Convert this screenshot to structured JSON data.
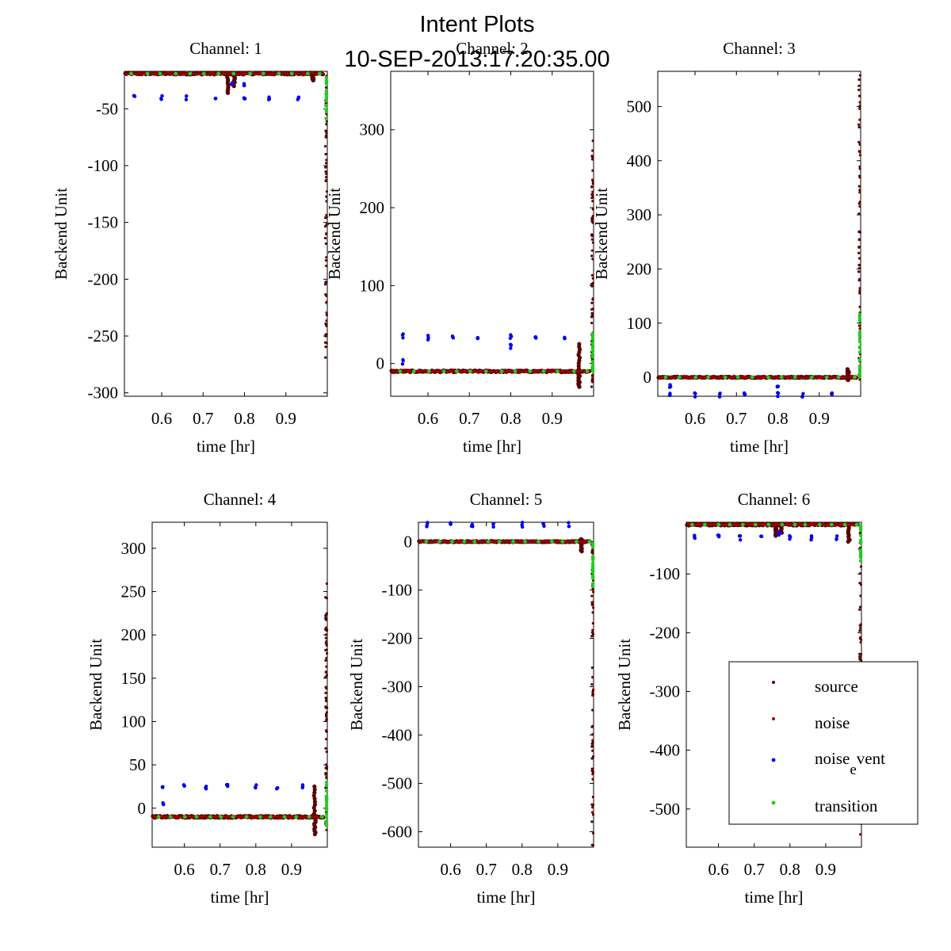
{
  "figure": {
    "title_line1": "Intent Plots",
    "title_line2": "10-SEP-2013:17:20:35.00"
  },
  "chart_data": [
    {
      "type": "scatter",
      "title": "Channel: 1",
      "xlabel": "time [hr]",
      "ylabel": "Backend Unit",
      "xlim": [
        0.51,
        1.0
      ],
      "ylim": [
        -303,
        -17
      ],
      "xticks": [
        0.6,
        0.7,
        0.8,
        0.9
      ],
      "xtick_labels": [
        "0.6",
        "0.7",
        "0.8",
        "0.9"
      ],
      "yticks": [
        -50,
        -100,
        -150,
        -200,
        -250,
        -300
      ],
      "ytick_labels": [
        "-50",
        "-100",
        "-150",
        "-200",
        "-250",
        "-300"
      ],
      "series": [
        {
          "name": "source",
          "color": "#5a0000",
          "base": -19,
          "band": 1.5,
          "spikes": [
            [
              0.76,
              -36
            ],
            [
              0.775,
              -30
            ],
            [
              0.965,
              -25
            ]
          ],
          "end_range": [
            -270,
            -19
          ]
        },
        {
          "name": "noise",
          "color": "#b00000",
          "base": -19,
          "band": 1.2
        },
        {
          "name": "noise_event",
          "color": "#0000ee",
          "offsets": [
            [
              0.534,
              -40
            ],
            [
              0.6,
              -40
            ],
            [
              0.66,
              -40
            ],
            [
              0.73,
              -40
            ],
            [
              0.8,
              -40
            ],
            [
              0.86,
              -40
            ],
            [
              0.93,
              -40
            ],
            [
              0.8,
              -30
            ],
            [
              0.77,
              -27
            ]
          ]
        },
        {
          "name": "transition",
          "color": "#22cc22",
          "base": -19,
          "end_range": [
            -60,
            -19
          ]
        }
      ]
    },
    {
      "type": "scatter",
      "title": "Channel: 2",
      "xlabel": "time [hr]",
      "ylabel": "Backend Unit",
      "xlim": [
        0.51,
        1.0
      ],
      "ylim": [
        -42,
        375
      ],
      "xticks": [
        0.6,
        0.7,
        0.8,
        0.9
      ],
      "xtick_labels": [
        "0.6",
        "0.7",
        "0.8",
        "0.9"
      ],
      "yticks": [
        300,
        200,
        100,
        0
      ],
      "ytick_labels": [
        "300",
        "200",
        "100",
        "0"
      ],
      "series": [
        {
          "name": "source",
          "color": "#5a0000",
          "base": -10,
          "band": 2,
          "spikes": [
            [
              0.965,
              25
            ],
            [
              0.965,
              -30
            ]
          ],
          "end_range": [
            -30,
            300
          ]
        },
        {
          "name": "noise",
          "color": "#b00000",
          "base": -10,
          "band": 1.5
        },
        {
          "name": "noise_event",
          "color": "#0000ee",
          "offsets": [
            [
              0.54,
              35
            ],
            [
              0.6,
              33
            ],
            [
              0.66,
              34
            ],
            [
              0.72,
              33
            ],
            [
              0.8,
              35
            ],
            [
              0.86,
              33
            ],
            [
              0.93,
              34
            ],
            [
              0.8,
              22
            ],
            [
              0.54,
              2
            ]
          ]
        },
        {
          "name": "transition",
          "color": "#22cc22",
          "base": -10,
          "end_range": [
            -10,
            40
          ]
        }
      ]
    },
    {
      "type": "scatter",
      "title": "Channel: 3",
      "xlabel": "time [hr]",
      "ylabel": "Backend Unit",
      "xlim": [
        0.51,
        1.0
      ],
      "ylim": [
        -35,
        565
      ],
      "xticks": [
        0.6,
        0.7,
        0.8,
        0.9
      ],
      "xtick_labels": [
        "0.6",
        "0.7",
        "0.8",
        "0.9"
      ],
      "yticks": [
        500,
        400,
        300,
        200,
        100,
        0
      ],
      "ytick_labels": [
        "500",
        "400",
        "300",
        "200",
        "100",
        "0"
      ],
      "series": [
        {
          "name": "source",
          "color": "#5a0000",
          "base": 0,
          "band": 2,
          "spikes": [
            [
              0.97,
              15
            ],
            [
              0.97,
              -5
            ]
          ],
          "end_range": [
            -5,
            560
          ]
        },
        {
          "name": "noise",
          "color": "#b00000",
          "base": 0,
          "band": 1.5
        },
        {
          "name": "noise_event",
          "color": "#0000ee",
          "offsets": [
            [
              0.54,
              -32
            ],
            [
              0.6,
              -32
            ],
            [
              0.66,
              -32
            ],
            [
              0.72,
              -32
            ],
            [
              0.8,
              -32
            ],
            [
              0.86,
              -32
            ],
            [
              0.93,
              -32
            ],
            [
              0.8,
              -20
            ],
            [
              0.54,
              -15
            ]
          ]
        },
        {
          "name": "transition",
          "color": "#22cc22",
          "base": 0,
          "end_range": [
            0,
            120
          ]
        }
      ]
    },
    {
      "type": "scatter",
      "title": "Channel: 4",
      "xlabel": "time [hr]",
      "ylabel": "Backend Unit",
      "xlim": [
        0.51,
        1.0
      ],
      "ylim": [
        -45,
        330
      ],
      "xticks": [
        0.6,
        0.7,
        0.8,
        0.9
      ],
      "xtick_labels": [
        "0.6",
        "0.7",
        "0.8",
        "0.9"
      ],
      "yticks": [
        300,
        250,
        200,
        150,
        100,
        50,
        0
      ],
      "ytick_labels": [
        "300",
        "250",
        "200",
        "150",
        "100",
        "50",
        "0"
      ],
      "series": [
        {
          "name": "source",
          "color": "#5a0000",
          "base": -10,
          "band": 2,
          "spikes": [
            [
              0.965,
              25
            ],
            [
              0.965,
              -30
            ]
          ],
          "end_range": [
            -30,
            260
          ]
        },
        {
          "name": "noise",
          "color": "#b00000",
          "base": -10,
          "band": 1.5
        },
        {
          "name": "noise_event",
          "color": "#0000ee",
          "offsets": [
            [
              0.54,
              26
            ],
            [
              0.6,
              25
            ],
            [
              0.66,
              25
            ],
            [
              0.72,
              25
            ],
            [
              0.8,
              26
            ],
            [
              0.86,
              25
            ],
            [
              0.93,
              25
            ],
            [
              0.54,
              5
            ]
          ]
        },
        {
          "name": "transition",
          "color": "#22cc22",
          "base": -10,
          "end_range": [
            -20,
            30
          ]
        }
      ]
    },
    {
      "type": "scatter",
      "title": "Channel: 5",
      "xlabel": "time [hr]",
      "ylabel": "Backend Unit",
      "xlim": [
        0.51,
        1.0
      ],
      "ylim": [
        -632,
        40
      ],
      "xticks": [
        0.6,
        0.7,
        0.8,
        0.9
      ],
      "xtick_labels": [
        "0.6",
        "0.7",
        "0.8",
        "0.9"
      ],
      "yticks": [
        0,
        -100,
        -200,
        -300,
        -400,
        -500,
        -600
      ],
      "ytick_labels": [
        "0",
        "-100",
        "-200",
        "-300",
        "-400",
        "-500",
        "-600"
      ],
      "series": [
        {
          "name": "source",
          "color": "#5a0000",
          "base": 0,
          "band": 2,
          "spikes": [
            [
              0.965,
              -20
            ],
            [
              0.965,
              5
            ]
          ],
          "end_range": [
            -630,
            0
          ]
        },
        {
          "name": "noise",
          "color": "#b00000",
          "base": 0,
          "band": 1.5
        },
        {
          "name": "noise_event",
          "color": "#0000ee",
          "offsets": [
            [
              0.534,
              35
            ],
            [
              0.6,
              35
            ],
            [
              0.66,
              35
            ],
            [
              0.72,
              35
            ],
            [
              0.8,
              35
            ],
            [
              0.86,
              35
            ],
            [
              0.93,
              35
            ]
          ]
        },
        {
          "name": "transition",
          "color": "#22cc22",
          "base": 0,
          "end_range": [
            -100,
            0
          ]
        }
      ]
    },
    {
      "type": "scatter",
      "title": "Channel: 6",
      "xlabel": "time [hr]",
      "ylabel": "Backend Unit",
      "xlim": [
        0.51,
        1.0
      ],
      "ylim": [
        -565,
        -12
      ],
      "xticks": [
        0.6,
        0.7,
        0.8,
        0.9
      ],
      "xtick_labels": [
        "0.6",
        "0.7",
        "0.8",
        "0.9"
      ],
      "yticks": [
        -100,
        -200,
        -300,
        -400,
        -500
      ],
      "ytick_labels": [
        "-100",
        "-200",
        "-300",
        "-400",
        "-500"
      ],
      "series": [
        {
          "name": "source",
          "color": "#5a0000",
          "base": -16,
          "band": 3,
          "spikes": [
            [
              0.76,
              -35
            ],
            [
              0.775,
              -30
            ],
            [
              0.965,
              -45
            ]
          ],
          "end_range": [
            -560,
            -16
          ]
        },
        {
          "name": "noise",
          "color": "#b00000",
          "base": -16,
          "band": 2
        },
        {
          "name": "noise_event",
          "color": "#0000ee",
          "offsets": [
            [
              0.534,
              -38
            ],
            [
              0.6,
              -38
            ],
            [
              0.66,
              -38
            ],
            [
              0.72,
              -38
            ],
            [
              0.8,
              -38
            ],
            [
              0.86,
              -38
            ],
            [
              0.93,
              -38
            ],
            [
              0.77,
              -30
            ]
          ]
        },
        {
          "name": "transition",
          "color": "#22cc22",
          "base": -16,
          "end_range": [
            -80,
            -16
          ]
        }
      ]
    }
  ],
  "legend": {
    "location": "lower-right of Channel: 6",
    "entries": [
      {
        "label": "source",
        "color": "#5a0000"
      },
      {
        "label": "noise",
        "color": "#b00000"
      },
      {
        "label_main": "noise",
        "label_sub": "e",
        "label_tail": "vent",
        "color": "#0000ee"
      },
      {
        "label": "transition",
        "color": "#22cc22"
      }
    ]
  }
}
